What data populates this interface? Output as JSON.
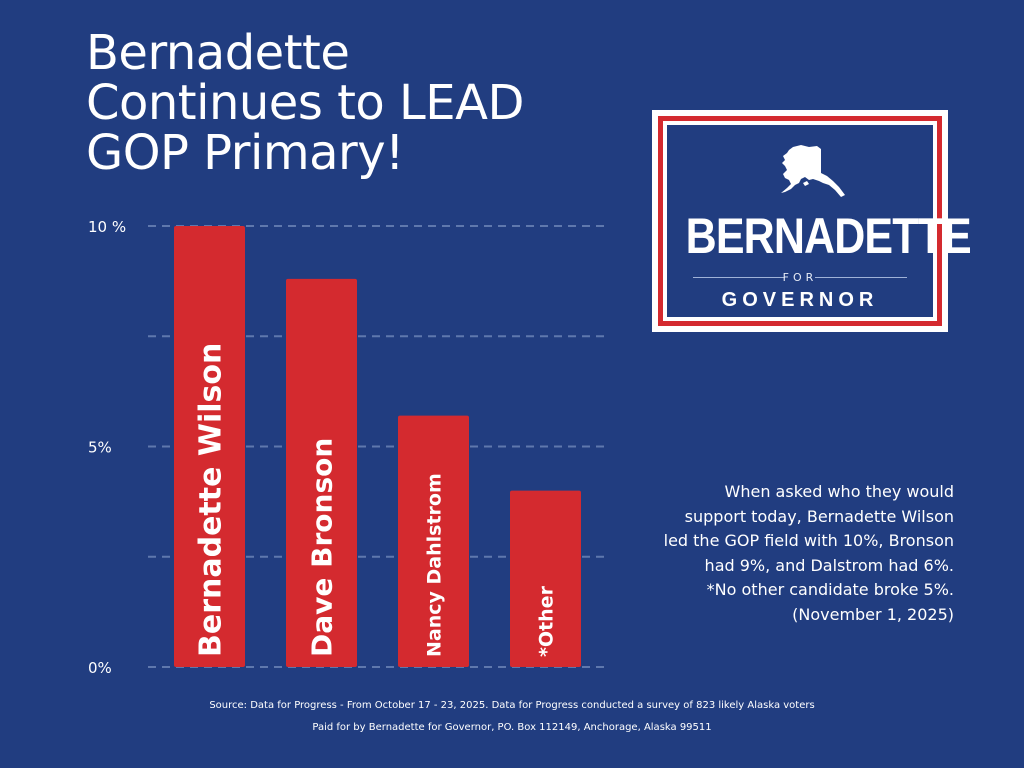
{
  "title_lines": [
    "Bernadette",
    "Continues to LEAD",
    "GOP Primary!"
  ],
  "logo": {
    "name": "BERNADETTE",
    "for": "FOR",
    "office": "GOVERNOR",
    "icon": "alaska-state-icon"
  },
  "note": {
    "main": "When asked who they would support today, Bernadette Wilson led the GOP field with 10%, Bronson had 9%, and Dalstrom had 6%.",
    "footnote": "*No other candidate broke 5%. (November 1, 2025)"
  },
  "source": "Source:  Data for Progress - From October 17 - 23, 2025. Data for Progress conducted a survey of 823 likely Alaska voters",
  "paid_for": "Paid for by Bernadette for Governor, PO. Box 112149, Anchorage, Alaska 99511",
  "colors": {
    "background": "#213d80",
    "bar": "#d42a2f",
    "gridline": "#5f78ad"
  },
  "chart_data": {
    "type": "bar",
    "orientation": "vertical",
    "categories": [
      "Bernadette Wilson",
      "Dave Bronson",
      "Nancy Dahlstrom",
      "*Other"
    ],
    "values": [
      10,
      8.8,
      5.7,
      4
    ],
    "ylim": [
      0,
      10
    ],
    "yticks": [
      {
        "value": 10,
        "label": "10 %"
      },
      {
        "value": 5,
        "label": "5%"
      },
      {
        "value": 0,
        "label": "0%"
      }
    ],
    "gridlines": [
      0,
      2.5,
      5,
      7.5,
      10
    ],
    "grid": true,
    "labels_inside_bars": true
  }
}
